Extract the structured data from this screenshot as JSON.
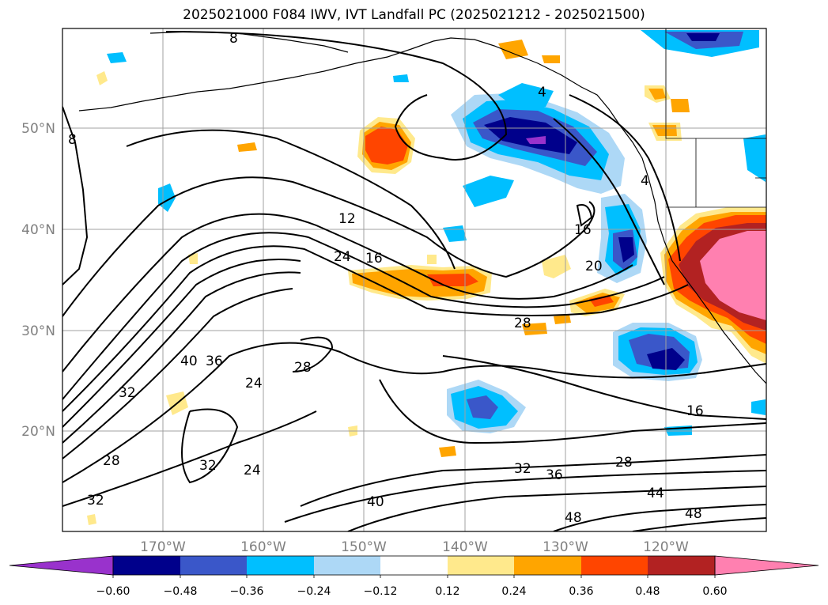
{
  "title": "2025021000 F084 IWV, IVT Landfall PC (2025021212 - 2025021500)",
  "map": {
    "lon_ticks": [
      "170°W",
      "160°W",
      "150°W",
      "140°W",
      "130°W",
      "120°W"
    ],
    "lat_ticks": [
      "50°N",
      "40°N",
      "30°N",
      "20°N"
    ],
    "contour_labels": [
      {
        "id": "c8a",
        "text": "8"
      },
      {
        "id": "c8b",
        "text": "8"
      },
      {
        "id": "c4a",
        "text": "4"
      },
      {
        "id": "c4b",
        "text": "4"
      },
      {
        "id": "c12",
        "text": "12"
      },
      {
        "id": "c16a",
        "text": "16"
      },
      {
        "id": "c16b",
        "text": "16"
      },
      {
        "id": "c16c",
        "text": "16"
      },
      {
        "id": "c20",
        "text": "20"
      },
      {
        "id": "c24a",
        "text": "24"
      },
      {
        "id": "c24b",
        "text": "24"
      },
      {
        "id": "c24c",
        "text": "24"
      },
      {
        "id": "c28a",
        "text": "28"
      },
      {
        "id": "c28b",
        "text": "28"
      },
      {
        "id": "c28c",
        "text": "28"
      },
      {
        "id": "c28d",
        "text": "28"
      },
      {
        "id": "c32a",
        "text": "32"
      },
      {
        "id": "c32b",
        "text": "32"
      },
      {
        "id": "c32c",
        "text": "32"
      },
      {
        "id": "c32d",
        "text": "32"
      },
      {
        "id": "c36a",
        "text": "36"
      },
      {
        "id": "c36b",
        "text": "36"
      },
      {
        "id": "c40a",
        "text": "40"
      },
      {
        "id": "c40b",
        "text": "40"
      },
      {
        "id": "c44",
        "text": "44"
      },
      {
        "id": "c48a",
        "text": "48"
      },
      {
        "id": "c48b",
        "text": "48"
      }
    ]
  },
  "colorbar": {
    "labels": [
      "−0.60",
      "−0.48",
      "−0.36",
      "−0.24",
      "−0.12",
      "0.12",
      "0.24",
      "0.36",
      "0.48",
      "0.60"
    ],
    "colors": [
      "#9932cc",
      "#00008b",
      "#3a57c9",
      "#00bfff",
      "#add8f6",
      "#ffffff",
      "#ffe98c",
      "#ffa500",
      "#ff4500",
      "#b22222",
      "#ff80b0"
    ]
  }
}
